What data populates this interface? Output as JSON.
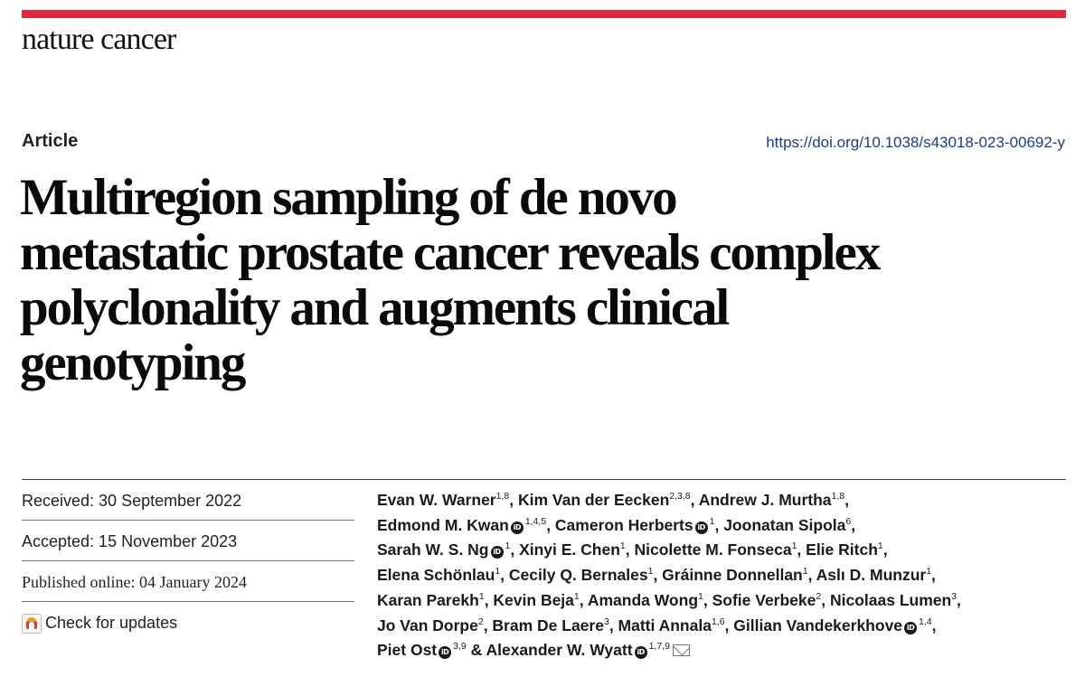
{
  "journal": {
    "name": "nature cancer",
    "accent_color": "#e0273f"
  },
  "article": {
    "type": "Article",
    "doi": "https://doi.org/10.1038/s43018-023-00692-y",
    "title_lines": [
      "Multiregion sampling of de novo",
      "metastatic prostate cancer reveals complex",
      "polyclonality and augments clinical",
      "genotyping"
    ]
  },
  "dates": {
    "received": "Received: 30 September 2022",
    "accepted": "Accepted: 15 November 2023",
    "published": "Published online: 04 January 2024",
    "check_updates": "Check for updates"
  },
  "author_lines": [
    [
      {
        "name": "Evan W. Warner",
        "sup": "1,8",
        "orcid": false,
        "sep": ", "
      },
      {
        "name": "Kim Van der Eecken",
        "sup": "2,3,8",
        "orcid": false,
        "sep": ", "
      },
      {
        "name": "Andrew J. Murtha",
        "sup": "1,8",
        "orcid": false,
        "sep": ","
      }
    ],
    [
      {
        "name": "Edmond M. Kwan",
        "sup": "1,4,5",
        "orcid": true,
        "sep": ", "
      },
      {
        "name": "Cameron Herberts",
        "sup": "1",
        "orcid": true,
        "sep": ", "
      },
      {
        "name": "Joonatan Sipola",
        "sup": "6",
        "orcid": false,
        "sep": ","
      }
    ],
    [
      {
        "name": "Sarah W. S. Ng",
        "sup": "1",
        "orcid": true,
        "sep": ", "
      },
      {
        "name": "Xinyi E. Chen",
        "sup": "1",
        "orcid": false,
        "sep": ", "
      },
      {
        "name": "Nicolette M. Fonseca",
        "sup": "1",
        "orcid": false,
        "sep": ", "
      },
      {
        "name": "Elie Ritch",
        "sup": "1",
        "orcid": false,
        "sep": ","
      }
    ],
    [
      {
        "name": "Elena Schönlau",
        "sup": "1",
        "orcid": false,
        "sep": ", "
      },
      {
        "name": "Cecily Q. Bernales",
        "sup": "1",
        "orcid": false,
        "sep": ", "
      },
      {
        "name": "Gráinne Donnellan",
        "sup": "1",
        "orcid": false,
        "sep": ", "
      },
      {
        "name": "Aslı D. Munzur",
        "sup": "1",
        "orcid": false,
        "sep": ","
      }
    ],
    [
      {
        "name": "Karan Parekh",
        "sup": "1",
        "orcid": false,
        "sep": ", "
      },
      {
        "name": "Kevin Beja",
        "sup": "1",
        "orcid": false,
        "sep": ", "
      },
      {
        "name": "Amanda Wong",
        "sup": "1",
        "orcid": false,
        "sep": ", "
      },
      {
        "name": "Sofie Verbeke",
        "sup": "2",
        "orcid": false,
        "sep": ", "
      },
      {
        "name": "Nicolaas Lumen",
        "sup": "3",
        "orcid": false,
        "sep": ","
      }
    ],
    [
      {
        "name": "Jo Van Dorpe",
        "sup": "2",
        "orcid": false,
        "sep": ", "
      },
      {
        "name": "Bram De Laere",
        "sup": "3",
        "orcid": false,
        "sep": ", "
      },
      {
        "name": "Matti Annala",
        "sup": "1,6",
        "orcid": false,
        "sep": ", "
      },
      {
        "name": "Gillian Vandekerkhove",
        "sup": "1,4",
        "orcid": true,
        "sep": ","
      }
    ],
    [
      {
        "name": "Piet Ost",
        "sup": "3,9",
        "orcid": true,
        "sep": " & "
      },
      {
        "name": "Alexander W. Wyatt",
        "sup": "1,7,9",
        "orcid": true,
        "sep": "",
        "mail": true
      }
    ]
  ],
  "icons": {
    "orcid": "orcid-icon",
    "mail": "mail-icon",
    "updates": "check-updates-icon"
  },
  "colors": {
    "doi_link": "#1a3c8a",
    "text": "#111111"
  }
}
